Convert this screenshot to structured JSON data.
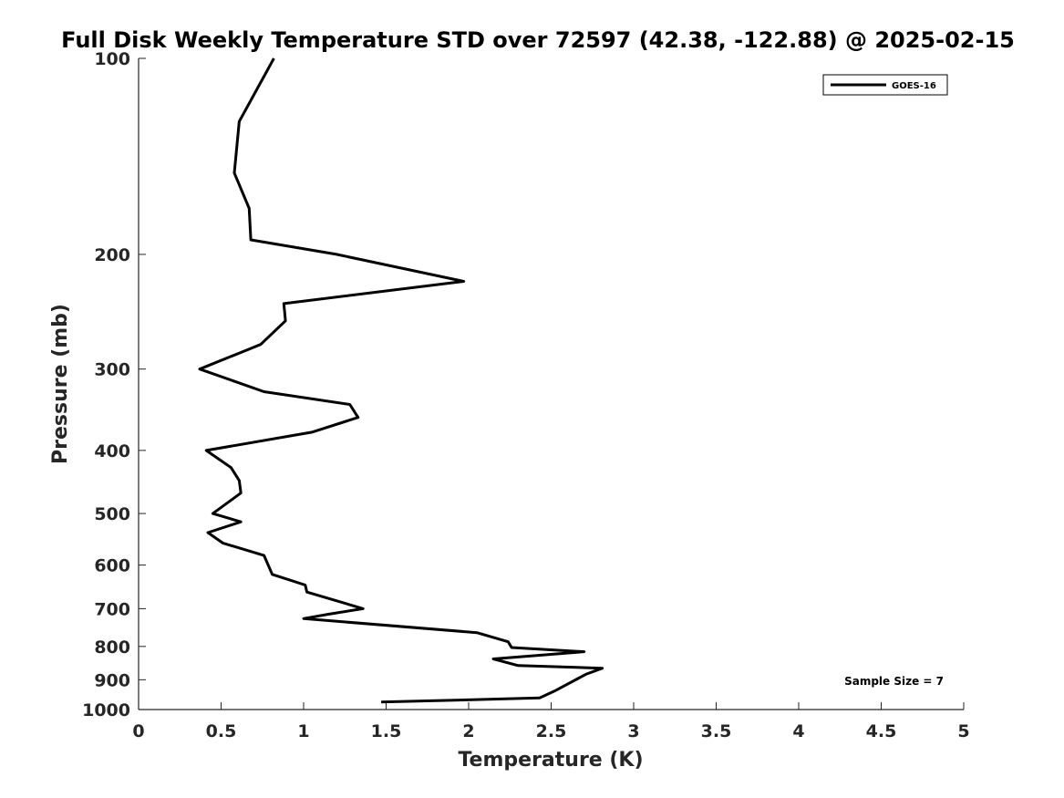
{
  "chart_data": {
    "type": "line",
    "title": "Full Disk Weekly Temperature STD over 72597 (42.38, -122.88) @ 2025-02-15",
    "xlabel": "Temperature (K)",
    "ylabel": "Pressure (mb)",
    "xlim": [
      0,
      5
    ],
    "ylim": [
      100,
      1000
    ],
    "y_scale": "log",
    "y_reversed": true,
    "x_ticks": [
      "0",
      "0.5",
      "1",
      "1.5",
      "2",
      "2.5",
      "3",
      "3.5",
      "4",
      "4.5",
      "5"
    ],
    "y_ticks": [
      "100",
      "200",
      "300",
      "400",
      "500",
      "600",
      "700",
      "800",
      "900",
      "1000"
    ],
    "grid": false,
    "legend": {
      "position": "top-right",
      "entries": [
        "GOES-16"
      ]
    },
    "annotation": "Sample Size = 7",
    "series": [
      {
        "name": "GOES-16",
        "color": "#000000",
        "points": [
          [
            0.82,
            100
          ],
          [
            0.61,
            125
          ],
          [
            0.58,
            150
          ],
          [
            0.67,
            170
          ],
          [
            0.68,
            190
          ],
          [
            1.2,
            200
          ],
          [
            1.97,
            220
          ],
          [
            0.88,
            238
          ],
          [
            0.89,
            253
          ],
          [
            0.74,
            275
          ],
          [
            0.37,
            300
          ],
          [
            0.76,
            325
          ],
          [
            1.28,
            340
          ],
          [
            1.33,
            356
          ],
          [
            1.05,
            375
          ],
          [
            0.41,
            400
          ],
          [
            0.56,
            425
          ],
          [
            0.61,
            445
          ],
          [
            0.62,
            465
          ],
          [
            0.45,
            500
          ],
          [
            0.62,
            515
          ],
          [
            0.42,
            535
          ],
          [
            0.51,
            555
          ],
          [
            0.76,
            580
          ],
          [
            0.81,
            620
          ],
          [
            1.01,
            644
          ],
          [
            1.02,
            660
          ],
          [
            1.36,
            700
          ],
          [
            1.15,
            714
          ],
          [
            1.0,
            725
          ],
          [
            2.05,
            762
          ],
          [
            2.24,
            787
          ],
          [
            2.26,
            803
          ],
          [
            2.7,
            815
          ],
          [
            2.15,
            836
          ],
          [
            2.3,
            856
          ],
          [
            2.81,
            864
          ],
          [
            2.71,
            883
          ],
          [
            2.52,
            937
          ],
          [
            2.43,
            960
          ],
          [
            1.47,
            974
          ]
        ]
      }
    ]
  }
}
